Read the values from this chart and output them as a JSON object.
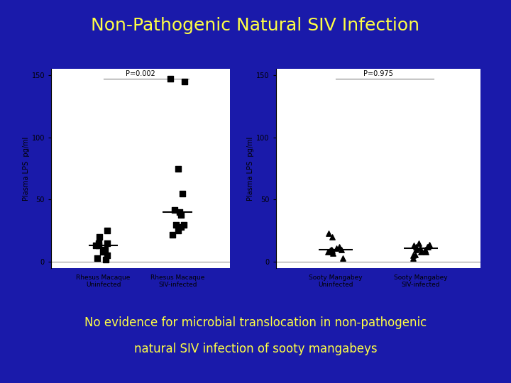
{
  "title": "Non-Pathogenic Natural SIV Infection",
  "subtitle_line1": "No evidence for microbial translocation in non-pathogenic",
  "subtitle_line2": "natural SIV infection of sooty mangabeys",
  "title_color": "#FFFF44",
  "subtitle_color": "#FFFF44",
  "bg_color": "#1a1aaa",
  "plot_bg": "#ffffff",
  "ylabel": "Plasma LPS  pg/ml",
  "left_plot": {
    "p_value": "P=0.002",
    "xlabel1": "Rhesus Macaque\nUninfected",
    "xlabel2": "Rhesus Macaque\nSIV-infected",
    "group1_data": [
      15,
      13,
      10,
      5,
      8,
      20,
      15,
      25,
      13,
      3,
      2
    ],
    "group1_median": 13,
    "group2_data": [
      145,
      147,
      75,
      55,
      40,
      38,
      42,
      30,
      28,
      25,
      22,
      30
    ],
    "group2_median": 40,
    "marker": "s",
    "ylim": [
      0,
      150
    ],
    "yticks": [
      0,
      50,
      100,
      150
    ]
  },
  "right_plot": {
    "p_value": "P=0.975",
    "xlabel1": "Sooty Mangabey\nUninfected",
    "xlabel2": "Sooty Mangabey\nSIV-infected",
    "group1_data": [
      10,
      9,
      8,
      7,
      10,
      11,
      9,
      20,
      23,
      8,
      3,
      10,
      12
    ],
    "group1_median": 10,
    "group2_data": [
      12,
      8,
      10,
      6,
      5,
      3,
      12,
      14,
      15,
      10,
      11,
      8,
      12,
      13
    ],
    "group2_median": 11,
    "marker": "^",
    "ylim": [
      0,
      150
    ],
    "yticks": [
      0,
      50,
      100,
      150
    ]
  }
}
